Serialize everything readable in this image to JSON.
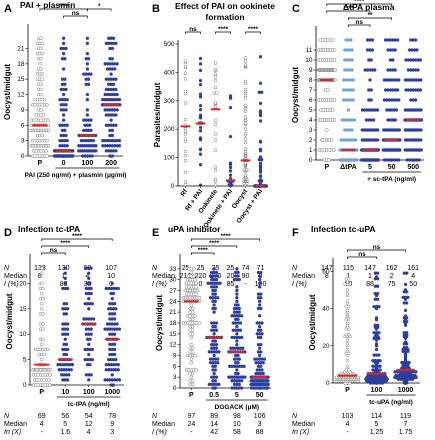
{
  "chart_data": [
    {
      "type": "scatter",
      "letter": "A",
      "title": "PAI + plasmin",
      "ylabel": "Oocyst/midgut",
      "ylim": [
        0,
        25
      ],
      "yticks": [
        0,
        3,
        6,
        9,
        12,
        15,
        18,
        21
      ],
      "categories": [
        "P",
        "0",
        "100",
        "200"
      ],
      "category_colors": [
        "#ffffff",
        "#2d3f9e",
        "#2d3f9e",
        "#2d3f9e"
      ],
      "xlabel": "PAI (250 ng/ml) + plasmin (μg/ml)",
      "medians": [
        6,
        1,
        4,
        10
      ],
      "brackets": [
        {
          "from": 0,
          "to": 2,
          "label": "****",
          "level": 2
        },
        {
          "from": 2,
          "to": 3,
          "label": "*",
          "level": 2
        },
        {
          "from": 1,
          "to": 2,
          "label": "ns",
          "level": 1
        }
      ],
      "stats": [
        {
          "label": "N",
          "values": [
            "133",
            "130",
            "69",
            "107"
          ]
        },
        {
          "label": "Median",
          "values": [
            "6",
            "1",
            "4",
            "10"
          ]
        },
        {
          "label": "I (%)",
          "values": [
            "-",
            "83",
            "33",
            "0"
          ]
        }
      ]
    },
    {
      "type": "scatter",
      "letter": "B",
      "title": "Effect of PAI on ookinete formation",
      "ylabel": "Parasites/midgut",
      "ylim": [
        0,
        500
      ],
      "yticks": [
        0,
        100,
        200,
        300,
        400,
        500
      ],
      "categories": [
        "Rf",
        "Rf + PAI",
        "Ookinete",
        "Ookinete + PAI",
        "Oocyst",
        "Oocyst + PAI"
      ],
      "category_colors": [
        "#ffffff",
        "#2d3f9e",
        "#ffffff",
        "#2d3f9e",
        "#ffffff",
        "#2d3f9e"
      ],
      "xlabel": "",
      "medians": [
        210,
        220,
        270,
        20,
        90,
        0
      ],
      "brackets": [
        {
          "from": 0,
          "to": 1,
          "label": "ns",
          "level": 1
        },
        {
          "from": 2,
          "to": 3,
          "label": "****",
          "level": 1
        },
        {
          "from": 4,
          "to": 5,
          "label": "****",
          "level": 1
        }
      ],
      "stats": [
        {
          "label": "N",
          "values": [
            "25",
            "25",
            "25",
            "25",
            "74",
            "71"
          ]
        },
        {
          "label": "Median",
          "values": [
            "210",
            "220",
            "270",
            "20",
            "90",
            "0"
          ]
        },
        {
          "label": "I (%)",
          "values": [
            "-",
            "0",
            "-",
            "85",
            "-",
            "100"
          ]
        }
      ]
    },
    {
      "type": "scatter",
      "letter": "C",
      "title": "ΔtPA plasma",
      "ylabel": "Oocyst/midgut",
      "ylim": [
        0,
        13
      ],
      "yticks": [
        0,
        1,
        2,
        3,
        4,
        5,
        6,
        7,
        8,
        9,
        10,
        11
      ],
      "categories": [
        "P",
        "ΔtPA",
        "5",
        "50",
        "500"
      ],
      "category_colors": [
        "#ffffff",
        "#6ea6d8",
        "#2d3f9e",
        "#2d3f9e",
        "#2d3f9e"
      ],
      "xlabel": "+ sc-tPA (ng/ml)",
      "medians": [
        8,
        1,
        1,
        2,
        4
      ],
      "brackets": [
        {
          "from": 0,
          "to": 4,
          "label": "*",
          "level": 4
        },
        {
          "from": 0,
          "to": 3,
          "label": "****",
          "level": 3
        },
        {
          "from": 0,
          "to": 2,
          "label": "****",
          "level": 2
        },
        {
          "from": 1,
          "to": 3,
          "label": "**",
          "level": 1
        },
        {
          "from": 1,
          "to": 2,
          "label": "ns",
          "level": 0
        }
      ],
      "stats": [
        {
          "label": "N",
          "values": [
            "147",
            "115",
            "147",
            "162",
            "161"
          ]
        },
        {
          "label": "Median",
          "values": [
            "8",
            "1",
            "1",
            "2",
            "4"
          ]
        },
        {
          "label": "I (%)",
          "values": [
            "",
            "88",
            "88",
            "75",
            "50"
          ]
        }
      ]
    },
    {
      "type": "scatter",
      "letter": "D",
      "title": "Infection tc-tPA",
      "ylabel": "Oocyst/midgut",
      "ylim": [
        0,
        25
      ],
      "yticks": [
        0,
        5,
        10,
        15,
        20
      ],
      "categories": [
        "P",
        "10",
        "100",
        "1000"
      ],
      "category_colors": [
        "#ffffff",
        "#2d3f9e",
        "#2d3f9e",
        "#2d3f9e"
      ],
      "xlabel": "tc-tPA (ng/ml)",
      "medians": [
        4,
        5,
        12,
        9
      ],
      "brackets": [
        {
          "from": 0,
          "to": 3,
          "label": "****",
          "level": 2
        },
        {
          "from": 0,
          "to": 2,
          "label": "****",
          "level": 1
        },
        {
          "from": 0,
          "to": 1,
          "label": "ns",
          "level": 0
        }
      ],
      "stats": [
        {
          "label": "N",
          "values": [
            "69",
            "56",
            "54",
            "78"
          ]
        },
        {
          "label": "Median",
          "values": [
            "4",
            "5",
            "12",
            "9"
          ]
        },
        {
          "label": "In (X)",
          "values": [
            "-",
            "1.6",
            "4",
            "3"
          ]
        }
      ]
    },
    {
      "type": "scatter",
      "letter": "E",
      "title": "uPA inhibitor",
      "ylabel": "Oocyst/midgut",
      "ylim": [
        0,
        36
      ],
      "yticks": [
        0,
        3,
        6,
        9,
        12,
        15,
        18,
        21,
        24,
        27,
        30,
        33
      ],
      "categories": [
        "P",
        "0.5",
        "5",
        "50"
      ],
      "category_colors": [
        "#ffffff",
        "#2d3f9e",
        "#2d3f9e",
        "#2d3f9e"
      ],
      "xlabel": "DGGACK (μM)",
      "medians": [
        24,
        14,
        10,
        3
      ],
      "brackets": [
        {
          "from": 0,
          "to": 3,
          "label": "****",
          "level": 2
        },
        {
          "from": 0,
          "to": 2,
          "label": "****",
          "level": 1
        },
        {
          "from": 0,
          "to": 1,
          "label": "****",
          "level": 0
        }
      ],
      "stats": [
        {
          "label": "N",
          "values": [
            "97",
            "89",
            "98",
            "106"
          ]
        },
        {
          "label": "Median",
          "values": [
            "24",
            "14",
            "10",
            "3"
          ]
        },
        {
          "label": "I (%)",
          "values": [
            "-",
            "42",
            "58",
            "88"
          ]
        }
      ]
    },
    {
      "type": "scatter",
      "letter": "F",
      "title": "Infection tc-uPA",
      "ylabel": "Oocyst/midgut",
      "ylim": [
        0,
        65
      ],
      "yticks": [
        0,
        20,
        40,
        60
      ],
      "categories": [
        "P",
        "100",
        "1000"
      ],
      "category_colors": [
        "#ffffff",
        "#2d3f9e",
        "#2d3f9e"
      ],
      "xlabel": "tc-uPA (ng/ml)",
      "medians": [
        4,
        5,
        7
      ],
      "brackets": [
        {
          "from": 0,
          "to": 2,
          "label": "ns",
          "level": 1
        },
        {
          "from": 0,
          "to": 1,
          "label": "ns",
          "level": 0
        }
      ],
      "stats": [
        {
          "label": "N",
          "values": [
            "103",
            "114",
            "119"
          ]
        },
        {
          "label": "Median",
          "values": [
            "4",
            "5",
            "7"
          ]
        },
        {
          "label": "In (X)",
          "values": [
            "-",
            "1.25",
            "1.75"
          ]
        }
      ]
    }
  ]
}
